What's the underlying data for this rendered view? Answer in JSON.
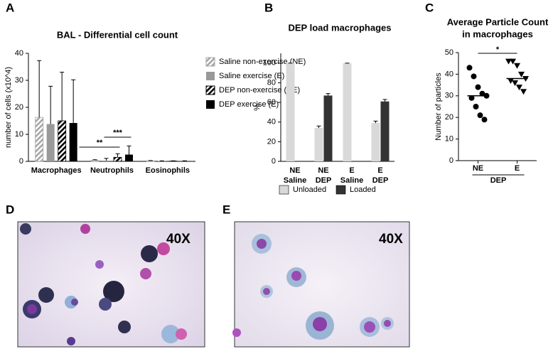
{
  "chart_data": [
    {
      "type": "bar",
      "panel_label": "A",
      "title": "BAL - Differential cell count",
      "ylabel": "number of cells (x10^4)",
      "categories": [
        "Macrophages",
        "Neutrophils",
        "Eosinophils"
      ],
      "ylim": [
        0,
        40
      ],
      "yticks": [
        0,
        10,
        20,
        30,
        40
      ],
      "legend": "upper right",
      "series": [
        {
          "name": "Saline non-exercise (NE)",
          "color": "#a6a6a6",
          "hatch": true,
          "values": [
            16.3,
            0.4,
            0.2
          ],
          "errors": [
            21,
            0.2,
            0.1
          ]
        },
        {
          "name": "Saline exercise (E)",
          "color": "#999999",
          "hatch": false,
          "values": [
            13.8,
            0.3,
            0.1
          ],
          "errors": [
            14,
            0.8,
            0.1
          ]
        },
        {
          "name": "DEP non-exercise (NE)",
          "color": "#000000",
          "hatch": true,
          "values": [
            15,
            1.5,
            0.1
          ],
          "errors": [
            18,
            1.3,
            0.1
          ]
        },
        {
          "name": "DEP exercise (E)",
          "color": "#000000",
          "hatch": false,
          "values": [
            14.2,
            2.5,
            0.1
          ],
          "errors": [
            16,
            3.2,
            0.1
          ]
        }
      ],
      "annotations": [
        "**",
        "***"
      ]
    },
    {
      "type": "bar",
      "panel_label": "B",
      "title": "DEP load macrophages",
      "ylabel": "%",
      "categories": [
        [
          "NE",
          "Saline"
        ],
        [
          "NE",
          "DEP"
        ],
        [
          "E",
          "Saline"
        ],
        [
          "E",
          "DEP"
        ]
      ],
      "ylim": [
        0,
        110
      ],
      "yticks": [
        0,
        20,
        40,
        60,
        80,
        100
      ],
      "legend": "lower center",
      "series": [
        {
          "name": "Unloaded",
          "color": "#d9d9d9",
          "hatch": false,
          "values": [
            100,
            34,
            100,
            39
          ],
          "errors": [
            0,
            2,
            0,
            2
          ]
        },
        {
          "name": "Loaded",
          "color": "#333333",
          "hatch": false,
          "values": [
            0,
            67,
            0,
            61
          ],
          "errors": [
            0,
            2,
            0,
            2
          ]
        }
      ]
    },
    {
      "type": "scatter",
      "panel_label": "C",
      "title": [
        "Average Particle Count",
        "in macrophages"
      ],
      "ylabel": "Number of particles",
      "ylim": [
        0,
        50
      ],
      "yticks": [
        0,
        10,
        20,
        30,
        40,
        50
      ],
      "group_label": "DEP",
      "series": [
        {
          "name": "NE",
          "marker": "circle",
          "color": "#000000",
          "values": [
            43,
            39,
            34,
            31,
            30,
            29,
            25,
            21,
            19
          ],
          "mean": 30
        },
        {
          "name": "E",
          "marker": "triangle-down",
          "color": "#000000",
          "values": [
            46,
            46,
            44,
            40,
            38,
            37,
            36,
            34,
            32
          ],
          "mean": 38
        }
      ],
      "annotations": [
        "*"
      ]
    }
  ],
  "images": [
    {
      "panel_label": "D",
      "magnification": "40X"
    },
    {
      "panel_label": "E",
      "magnification": "40X"
    }
  ]
}
